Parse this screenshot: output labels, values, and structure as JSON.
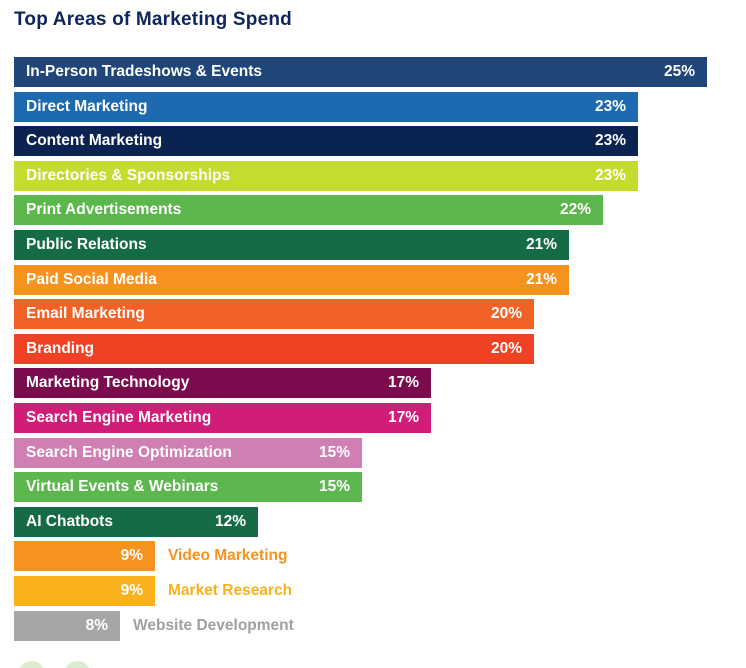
{
  "title": "Top Areas of Marketing Spend",
  "title_color": "#0F265C",
  "bars": [
    {
      "label": "In-Person Tradeshows & Events",
      "value": 25,
      "pct": "25%",
      "color": "#204579",
      "label_placement": "inside"
    },
    {
      "label": "Direct Marketing",
      "value": 23,
      "pct": "23%",
      "color": "#1E6AB0",
      "label_placement": "inside"
    },
    {
      "label": "Content Marketing",
      "value": 23,
      "pct": "23%",
      "color": "#0A2351",
      "label_placement": "inside"
    },
    {
      "label": "Directories & Sponsorships",
      "value": 23,
      "pct": "23%",
      "color": "#C6DB30",
      "label_placement": "inside"
    },
    {
      "label": "Print Advertisements",
      "value": 22,
      "pct": "22%",
      "color": "#5BB74B",
      "label_placement": "inside"
    },
    {
      "label": "Public Relations",
      "value": 21,
      "pct": "21%",
      "color": "#156B45",
      "label_placement": "inside"
    },
    {
      "label": "Paid Social Media",
      "value": 21,
      "pct": "21%",
      "color": "#F6921E",
      "label_placement": "inside"
    },
    {
      "label": "Email Marketing",
      "value": 20,
      "pct": "20%",
      "color": "#F26227",
      "label_placement": "inside"
    },
    {
      "label": "Branding",
      "value": 20,
      "pct": "20%",
      "color": "#EF4123",
      "label_placement": "inside"
    },
    {
      "label": "Marketing Technology",
      "value": 17,
      "pct": "17%",
      "color": "#7A0C4E",
      "label_placement": "inside"
    },
    {
      "label": "Search Engine Marketing",
      "value": 17,
      "pct": "17%",
      "color": "#D01E78",
      "label_placement": "inside"
    },
    {
      "label": "Search Engine Optimization",
      "value": 15,
      "pct": "15%",
      "color": "#D07FB2",
      "label_placement": "inside"
    },
    {
      "label": "Virtual Events & Webinars",
      "value": 15,
      "pct": "15%",
      "color": "#5CB84E",
      "label_placement": "inside"
    },
    {
      "label": "AI Chatbots",
      "value": 12,
      "pct": "12%",
      "color": "#156B45",
      "label_placement": "inside"
    },
    {
      "label": "Video Marketing",
      "value": 9,
      "pct": "9%",
      "color": "#F6921E",
      "label_color": "#F6921E",
      "label_placement": "outside"
    },
    {
      "label": "Market Research",
      "value": 9,
      "pct": "9%",
      "color": "#F9B21B",
      "label_color": "#F9B21B",
      "label_placement": "outside"
    },
    {
      "label": "Website Development",
      "value": 8,
      "pct": "8%",
      "color": "#A6A6A6",
      "label_color": "#A0A0A0",
      "label_placement": "outside"
    }
  ],
  "decor": {
    "circle_color": "#DBEBD1"
  },
  "chart_data": {
    "type": "bar",
    "orientation": "horizontal",
    "title": "Top Areas of Marketing Spend",
    "categories": [
      "In-Person Tradeshows & Events",
      "Direct Marketing",
      "Content Marketing",
      "Directories & Sponsorships",
      "Print Advertisements",
      "Public Relations",
      "Paid Social Media",
      "Email Marketing",
      "Branding",
      "Marketing Technology",
      "Search Engine Marketing",
      "Search Engine Optimization",
      "Virtual Events & Webinars",
      "AI Chatbots",
      "Video Marketing",
      "Market Research",
      "Website Development"
    ],
    "values": [
      25,
      23,
      23,
      23,
      22,
      21,
      21,
      20,
      20,
      17,
      17,
      15,
      15,
      12,
      9,
      9,
      8
    ],
    "unit": "%",
    "data_labels": [
      "25%",
      "23%",
      "23%",
      "23%",
      "22%",
      "21%",
      "21%",
      "20%",
      "20%",
      "17%",
      "17%",
      "15%",
      "15%",
      "12%",
      "9%",
      "9%",
      "8%"
    ],
    "bar_colors": [
      "#204579",
      "#1E6AB0",
      "#0A2351",
      "#C6DB30",
      "#5BB74B",
      "#156B45",
      "#F6921E",
      "#F26227",
      "#EF4123",
      "#7A0C4E",
      "#D01E78",
      "#D07FB2",
      "#5CB84E",
      "#156B45",
      "#F6921E",
      "#F9B21B",
      "#A6A6A6"
    ],
    "xlabel": "",
    "ylabel": "",
    "grid": false,
    "legend": false,
    "axis_ticks_visible": false,
    "value_label_position": "inside-right",
    "category_label_position": "inside-left, outside-right for last 3 bars"
  }
}
